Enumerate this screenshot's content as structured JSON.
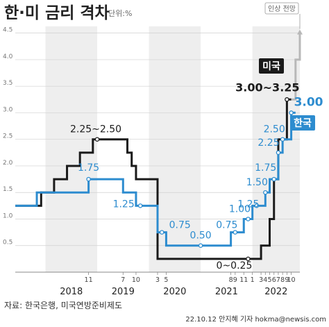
{
  "chart_data": {
    "type": "line",
    "title": "한·미 금리 격차",
    "unit_label": "단위:%",
    "ylim": [
      0,
      4.6
    ],
    "y_ticks": [
      "0.5",
      "1.0",
      "1.5",
      "2.0",
      "2.5",
      "3.0",
      "3.5",
      "4.0",
      "4.5"
    ],
    "x_month_labels": [
      "11",
      "7",
      "10",
      "3",
      "5",
      "8",
      "9",
      "11",
      "1",
      "3",
      "4",
      "5",
      "6",
      "7",
      "8",
      "9",
      "10"
    ],
    "x_year_labels": [
      "2018",
      "2019",
      "2020",
      "2021",
      "2022"
    ],
    "series": [
      {
        "name": "미국",
        "color": "#1a1a1a",
        "steps": [
          [
            "2017-06",
            1.25
          ],
          [
            "2017-12",
            1.5
          ],
          [
            "2018-03",
            1.75
          ],
          [
            "2018-06",
            2.0
          ],
          [
            "2018-09",
            2.25
          ],
          [
            "2018-12",
            2.5
          ],
          [
            "2019-08",
            2.25
          ],
          [
            "2019-09",
            2.0
          ],
          [
            "2019-10",
            1.75
          ],
          [
            "2020-03",
            0.25
          ],
          [
            "2022-03",
            0.5
          ],
          [
            "2022-05",
            1.0
          ],
          [
            "2022-06",
            1.75
          ],
          [
            "2022-07",
            2.5
          ],
          [
            "2022-09",
            3.25
          ],
          [
            "2022-10",
            3.25
          ]
        ],
        "projection": [
          [
            "2022-10",
            3.25
          ],
          [
            "2022-11",
            4.0
          ],
          [
            "2022-12",
            4.5
          ]
        ],
        "projection_color": "#b8b8b8",
        "projection_label": "인상 전망"
      },
      {
        "name": "한국",
        "color": "#2d8ccf",
        "steps": [
          [
            "2017-06",
            1.25
          ],
          [
            "2017-11",
            1.5
          ],
          [
            "2018-11",
            1.75
          ],
          [
            "2019-07",
            1.5
          ],
          [
            "2019-10",
            1.25
          ],
          [
            "2020-03",
            0.75
          ],
          [
            "2020-05",
            0.5
          ],
          [
            "2021-08",
            0.75
          ],
          [
            "2021-11",
            1.0
          ],
          [
            "2022-01",
            1.25
          ],
          [
            "2022-04",
            1.5
          ],
          [
            "2022-05",
            1.75
          ],
          [
            "2022-07",
            2.25
          ],
          [
            "2022-08",
            2.5
          ],
          [
            "2022-10",
            3.0
          ],
          [
            "2022-11",
            3.0
          ]
        ]
      }
    ],
    "annotations": [
      {
        "text": "2.25~2.50",
        "series": "미국",
        "date": "2019-01",
        "value": 2.5
      },
      {
        "text": "1.75",
        "series": "한국",
        "date": "2018-11",
        "value": 1.75
      },
      {
        "text": "1.25",
        "series": "한국",
        "date": "2019-11",
        "value": 1.25
      },
      {
        "text": "0.75",
        "series": "한국",
        "date": "2020-04",
        "value": 0.75
      },
      {
        "text": "0.50",
        "series": "한국",
        "date": "2021-01",
        "value": 0.5
      },
      {
        "text": "0.75",
        "series": "한국",
        "date": "2021-09",
        "value": 0.75
      },
      {
        "text": "1.00",
        "series": "한국",
        "date": "2021-12",
        "value": 1.0
      },
      {
        "text": "1.25",
        "series": "한국",
        "date": "2022-02",
        "value": 1.25
      },
      {
        "text": "1.50",
        "series": "한국",
        "date": "2022-04",
        "value": 1.5
      },
      {
        "text": "1.75",
        "series": "한국",
        "date": "2022-06",
        "value": 1.75
      },
      {
        "text": "2.25",
        "series": "한국",
        "date": "2022-07",
        "value": 2.25
      },
      {
        "text": "2.50",
        "series": "한국",
        "date": "2022-08",
        "value": 2.5
      },
      {
        "text": "3.00",
        "series": "한국",
        "date": "2022-10",
        "value": 3.0
      },
      {
        "text": "0~0.25",
        "series": "미국",
        "date": "2021-12",
        "value": 0.25
      },
      {
        "text": "3.00~3.25",
        "series": "미국",
        "date": "2022-09",
        "value": 3.25
      }
    ],
    "legend": [
      {
        "name": "미국",
        "color": "#1a1a1a"
      },
      {
        "name": "한국",
        "color": "#2d8ccf"
      }
    ],
    "grid": true
  },
  "footer": {
    "source": "자료: 한국은행, 미국연방준비제도",
    "credit": "22.10.12 안지혜 기자 hokma@newsis.com"
  }
}
